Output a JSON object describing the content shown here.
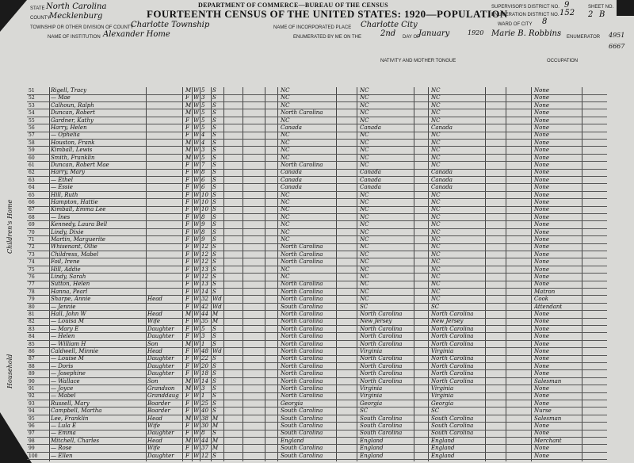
{
  "form": {
    "department": "DEPARTMENT OF COMMERCE—BUREAU OF THE CENSUS",
    "title": "FOURTEENTH CENSUS OF THE UNITED STATES: 1920—POPULATION",
    "labels": {
      "state": "STATE",
      "county": "COUNTY",
      "township": "TOWNSHIP OR OTHER DIVISION OF COUNTY",
      "institution": "NAME OF INSTITUTION",
      "place": "NAME OF INCORPORATED PLACE",
      "supervisor": "SUPERVISOR'S DISTRICT NO.",
      "enumeration": "ENUMERATION DISTRICT NO.",
      "ward": "WARD OF CITY",
      "sheet": "SHEET NO.",
      "enumerated": "ENUMERATED BY ME ON THE",
      "day_of": "DAY OF",
      "enumerator": "ENUMERATOR",
      "nativity": "NATIVITY AND MOTHER TONGUE",
      "occupation": "OCCUPATION"
    },
    "values": {
      "state": "North Carolina",
      "county": "Mecklenburg",
      "township": "Charlotte Township",
      "institution": "Alexander Home",
      "place": "Charlotte City",
      "supervisor": "9",
      "enumeration": "152",
      "ward": "8",
      "sheet": "2",
      "sheet_letter": "B",
      "day": "2nd",
      "month": "January",
      "year": "1920",
      "enumerator": "Marie B. Robbins"
    }
  },
  "margin": {
    "left_notes": [
      "Children's Home",
      "Household"
    ],
    "right_stamp": "4951",
    "right_number": "6667"
  },
  "rows": [
    {
      "name": "Rigell, Tracy",
      "rel": "",
      "sex": "M",
      "race": "W",
      "age": "5",
      "status": "S",
      "birth": "NC",
      "father": "NC",
      "mother": "NC",
      "occ": "None"
    },
    {
      "name": "— Mae",
      "rel": "",
      "sex": "F",
      "race": "W",
      "age": "3",
      "status": "S",
      "birth": "NC",
      "father": "NC",
      "mother": "NC",
      "occ": "None"
    },
    {
      "name": "Calhoun, Ralph",
      "rel": "",
      "sex": "M",
      "race": "W",
      "age": "5",
      "status": "S",
      "birth": "NC",
      "father": "NC",
      "mother": "NC",
      "occ": "None"
    },
    {
      "name": "Duncan, Robert",
      "rel": "",
      "sex": "M",
      "race": "W",
      "age": "5",
      "status": "S",
      "birth": "North Carolina",
      "father": "NC",
      "mother": "NC",
      "occ": "None"
    },
    {
      "name": "Gardner, Kathy",
      "rel": "",
      "sex": "F",
      "race": "W",
      "age": "5",
      "status": "S",
      "birth": "NC",
      "father": "NC",
      "mother": "NC",
      "occ": "None"
    },
    {
      "name": "Harry, Helen",
      "rel": "",
      "sex": "F",
      "race": "W",
      "age": "5",
      "status": "S",
      "birth": "Canada",
      "father": "Canada",
      "mother": "Canada",
      "occ": "None"
    },
    {
      "name": "— Ophelia",
      "rel": "",
      "sex": "F",
      "race": "W",
      "age": "4",
      "status": "S",
      "birth": "NC",
      "father": "NC",
      "mother": "NC",
      "occ": "None"
    },
    {
      "name": "Houston, Frank",
      "rel": "",
      "sex": "M",
      "race": "W",
      "age": "4",
      "status": "S",
      "birth": "NC",
      "father": "NC",
      "mother": "NC",
      "occ": "None"
    },
    {
      "name": "Kimball, Lewis",
      "rel": "",
      "sex": "M",
      "race": "W",
      "age": "3",
      "status": "S",
      "birth": "NC",
      "father": "NC",
      "mother": "NC",
      "occ": "None"
    },
    {
      "name": "Smith, Franklin",
      "rel": "",
      "sex": "M",
      "race": "W",
      "age": "5",
      "status": "S",
      "birth": "NC",
      "father": "NC",
      "mother": "NC",
      "occ": "None"
    },
    {
      "name": "Duncan, Robert Mae",
      "rel": "",
      "sex": "F",
      "race": "W",
      "age": "7",
      "status": "S",
      "birth": "North Carolina",
      "father": "NC",
      "mother": "NC",
      "occ": "None"
    },
    {
      "name": "Harry, Mary",
      "rel": "",
      "sex": "F",
      "race": "W",
      "age": "8",
      "status": "S",
      "birth": "Canada",
      "father": "Canada",
      "mother": "Canada",
      "occ": "None"
    },
    {
      "name": "— Ethel",
      "rel": "",
      "sex": "F",
      "race": "W",
      "age": "6",
      "status": "S",
      "birth": "Canada",
      "father": "Canada",
      "mother": "Canada",
      "occ": "None"
    },
    {
      "name": "— Essie",
      "rel": "",
      "sex": "F",
      "race": "W",
      "age": "6",
      "status": "S",
      "birth": "Canada",
      "father": "Canada",
      "mother": "Canada",
      "occ": "None"
    },
    {
      "name": "Hill, Ruth",
      "rel": "",
      "sex": "F",
      "race": "W",
      "age": "10",
      "status": "S",
      "birth": "NC",
      "father": "NC",
      "mother": "NC",
      "occ": "None"
    },
    {
      "name": "Hampton, Hattie",
      "rel": "",
      "sex": "F",
      "race": "W",
      "age": "10",
      "status": "S",
      "birth": "NC",
      "father": "NC",
      "mother": "NC",
      "occ": "None"
    },
    {
      "name": "Kimball, Emma Lee",
      "rel": "",
      "sex": "F",
      "race": "W",
      "age": "10",
      "status": "S",
      "birth": "NC",
      "father": "NC",
      "mother": "NC",
      "occ": "None"
    },
    {
      "name": "— Ines",
      "rel": "",
      "sex": "F",
      "race": "W",
      "age": "8",
      "status": "S",
      "birth": "NC",
      "father": "NC",
      "mother": "NC",
      "occ": "None"
    },
    {
      "name": "Kennedy, Laura Bell",
      "rel": "",
      "sex": "F",
      "race": "W",
      "age": "9",
      "status": "S",
      "birth": "NC",
      "father": "NC",
      "mother": "NC",
      "occ": "None"
    },
    {
      "name": "Lindy, Dixie",
      "rel": "",
      "sex": "F",
      "race": "W",
      "age": "8",
      "status": "S",
      "birth": "NC",
      "father": "NC",
      "mother": "NC",
      "occ": "None"
    },
    {
      "name": "Martin, Marguerite",
      "rel": "",
      "sex": "F",
      "race": "W",
      "age": "9",
      "status": "S",
      "birth": "NC",
      "father": "NC",
      "mother": "NC",
      "occ": "None"
    },
    {
      "name": "Whisenant, Ollie",
      "rel": "",
      "sex": "F",
      "race": "W",
      "age": "12",
      "status": "S",
      "birth": "North Carolina",
      "father": "NC",
      "mother": "NC",
      "occ": "None"
    },
    {
      "name": "Childress, Mabel",
      "rel": "",
      "sex": "F",
      "race": "W",
      "age": "12",
      "status": "S",
      "birth": "North Carolina",
      "father": "NC",
      "mother": "NC",
      "occ": "None"
    },
    {
      "name": "Foil, Irene",
      "rel": "",
      "sex": "F",
      "race": "W",
      "age": "12",
      "status": "S",
      "birth": "North Carolina",
      "father": "NC",
      "mother": "NC",
      "occ": "None"
    },
    {
      "name": "Hill, Addie",
      "rel": "",
      "sex": "F",
      "race": "W",
      "age": "13",
      "status": "S",
      "birth": "NC",
      "father": "NC",
      "mother": "NC",
      "occ": "None"
    },
    {
      "name": "Lindy, Sarah",
      "rel": "",
      "sex": "F",
      "race": "W",
      "age": "12",
      "status": "S",
      "birth": "NC",
      "father": "NC",
      "mother": "NC",
      "occ": "None"
    },
    {
      "name": "Sutton, Helen",
      "rel": "",
      "sex": "F",
      "race": "W",
      "age": "13",
      "status": "S",
      "birth": "North Carolina",
      "father": "NC",
      "mother": "NC",
      "occ": "None"
    },
    {
      "name": "Hanna, Pearl",
      "rel": "",
      "sex": "F",
      "race": "W",
      "age": "14",
      "status": "S",
      "birth": "North Carolina",
      "father": "NC",
      "mother": "NC",
      "occ": "Matron"
    },
    {
      "name": "Sharpe, Annie",
      "rel": "Head",
      "sex": "F",
      "race": "W",
      "age": "32",
      "status": "Wd",
      "birth": "North Carolina",
      "father": "NC",
      "mother": "NC",
      "occ": "Cook"
    },
    {
      "name": "— Jennie",
      "rel": "",
      "sex": "F",
      "race": "W",
      "age": "42",
      "status": "Wd",
      "birth": "South Carolina",
      "father": "SC",
      "mother": "SC",
      "occ": "Attendant"
    },
    {
      "name": "Hall, John W",
      "rel": "Head",
      "sex": "M",
      "race": "W",
      "age": "44",
      "status": "M",
      "birth": "North Carolina",
      "father": "North Carolina",
      "mother": "North Carolina",
      "occ": "None"
    },
    {
      "name": "— Louisa M",
      "rel": "Wife",
      "sex": "F",
      "race": "W",
      "age": "35",
      "status": "M",
      "birth": "North Carolina",
      "father": "New Jersey",
      "mother": "New Jersey",
      "occ": "None"
    },
    {
      "name": "— Mary E",
      "rel": "Daughter",
      "sex": "F",
      "race": "W",
      "age": "5",
      "status": "S",
      "birth": "North Carolina",
      "father": "North Carolina",
      "mother": "North Carolina",
      "occ": "None"
    },
    {
      "name": "— Helen",
      "rel": "Daughter",
      "sex": "F",
      "race": "W",
      "age": "3",
      "status": "S",
      "birth": "North Carolina",
      "father": "North Carolina",
      "mother": "North Carolina",
      "occ": "None"
    },
    {
      "name": "— William H",
      "rel": "Son",
      "sex": "M",
      "race": "W",
      "age": "1",
      "status": "S",
      "birth": "North Carolina",
      "father": "North Carolina",
      "mother": "North Carolina",
      "occ": "None"
    },
    {
      "name": "Caldwell, Minnie",
      "rel": "Head",
      "sex": "F",
      "race": "W",
      "age": "48",
      "status": "Wd",
      "birth": "North Carolina",
      "father": "Virginia",
      "mother": "Virginia",
      "occ": "None"
    },
    {
      "name": "— Louise M",
      "rel": "Daughter",
      "sex": "F",
      "race": "W",
      "age": "22",
      "status": "S",
      "birth": "North Carolina",
      "father": "North Carolina",
      "mother": "North Carolina",
      "occ": "None"
    },
    {
      "name": "— Doris",
      "rel": "Daughter",
      "sex": "F",
      "race": "W",
      "age": "20",
      "status": "S",
      "birth": "North Carolina",
      "father": "North Carolina",
      "mother": "North Carolina",
      "occ": "None"
    },
    {
      "name": "— Josephine",
      "rel": "Daughter",
      "sex": "F",
      "race": "W",
      "age": "18",
      "status": "S",
      "birth": "North Carolina",
      "father": "North Carolina",
      "mother": "North Carolina",
      "occ": "None"
    },
    {
      "name": "— Wallace",
      "rel": "Son",
      "sex": "M",
      "race": "W",
      "age": "14",
      "status": "S",
      "birth": "North Carolina",
      "father": "North Carolina",
      "mother": "North Carolina",
      "occ": "Salesman"
    },
    {
      "name": "— Joyce",
      "rel": "Grandson",
      "sex": "M",
      "race": "W",
      "age": "3",
      "status": "S",
      "birth": "North Carolina",
      "father": "Virginia",
      "mother": "Virginia",
      "occ": "None"
    },
    {
      "name": "— Mabel",
      "rel": "Granddaughter",
      "sex": "F",
      "race": "W",
      "age": "1",
      "status": "S",
      "birth": "North Carolina",
      "father": "Virginia",
      "mother": "Virginia",
      "occ": "None"
    },
    {
      "name": "Russell, Mary",
      "rel": "Boarder",
      "sex": "F",
      "race": "W",
      "age": "25",
      "status": "S",
      "birth": "Georgia",
      "father": "Georgia",
      "mother": "Georgia",
      "occ": "None"
    },
    {
      "name": "Campbell, Martha",
      "rel": "Boarder",
      "sex": "F",
      "race": "W",
      "age": "40",
      "status": "S",
      "birth": "South Carolina",
      "father": "SC",
      "mother": "SC",
      "occ": "Nurse"
    },
    {
      "name": "Lee, Franklin",
      "rel": "Head",
      "sex": "M",
      "race": "W",
      "age": "38",
      "status": "M",
      "birth": "South Carolina",
      "father": "South Carolina",
      "mother": "South Carolina",
      "occ": "Salesman"
    },
    {
      "name": "— Lula E",
      "rel": "Wife",
      "sex": "F",
      "race": "W",
      "age": "30",
      "status": "M",
      "birth": "South Carolina",
      "father": "South Carolina",
      "mother": "South Carolina",
      "occ": "None"
    },
    {
      "name": "— Emma",
      "rel": "Daughter",
      "sex": "F",
      "race": "W",
      "age": "8",
      "status": "S",
      "birth": "South Carolina",
      "father": "South Carolina",
      "mother": "South Carolina",
      "occ": "None"
    },
    {
      "name": "Mitchell, Charles",
      "rel": "Head",
      "sex": "M",
      "race": "W",
      "age": "44",
      "status": "M",
      "birth": "England",
      "father": "England",
      "mother": "England",
      "occ": "Merchant"
    },
    {
      "name": "— Rose",
      "rel": "Wife",
      "sex": "F",
      "race": "W",
      "age": "37",
      "status": "M",
      "birth": "South Carolina",
      "father": "England",
      "mother": "England",
      "occ": "None"
    },
    {
      "name": "— Ellen",
      "rel": "Daughter",
      "sex": "F",
      "race": "W",
      "age": "12",
      "status": "S",
      "birth": "South Carolina",
      "father": "England",
      "mother": "England",
      "occ": "None"
    }
  ]
}
